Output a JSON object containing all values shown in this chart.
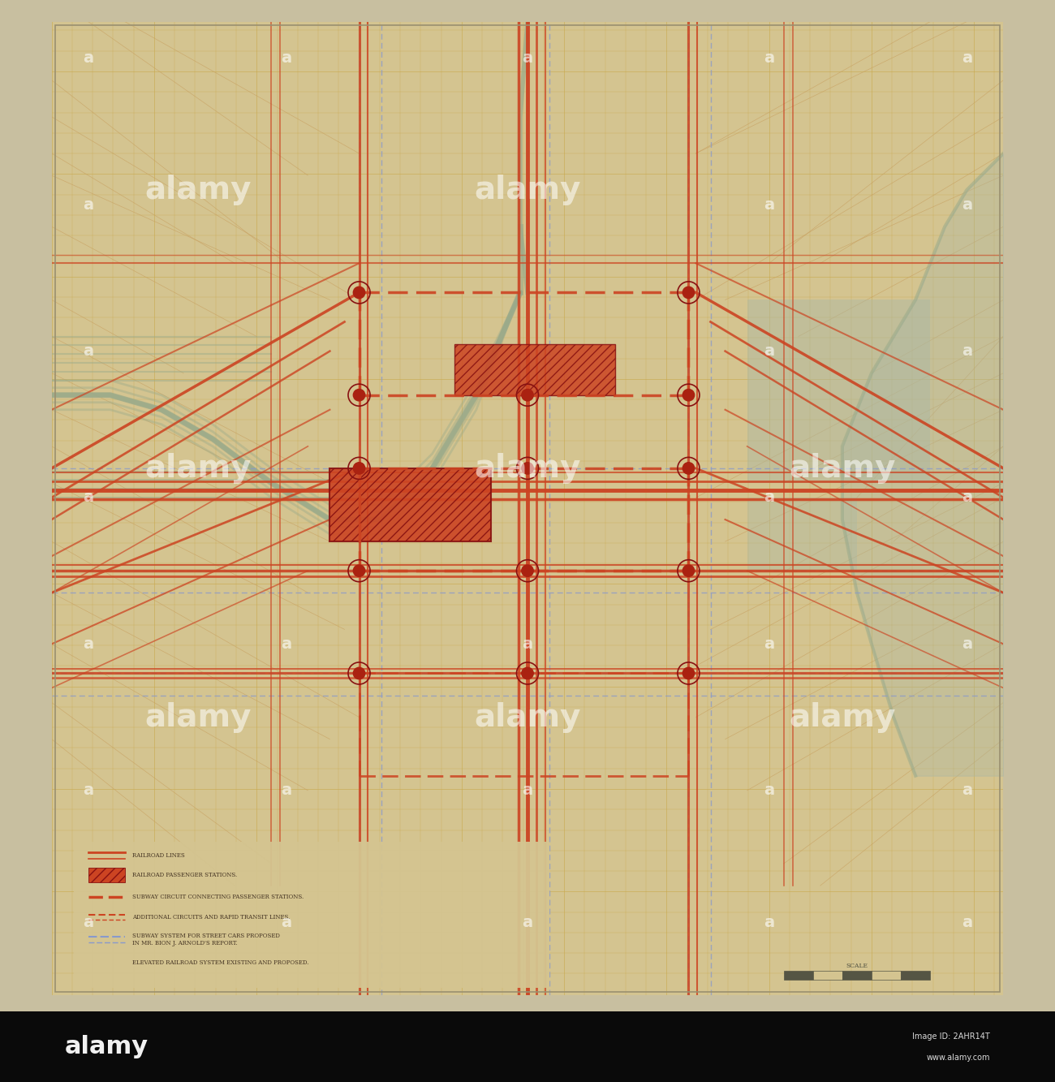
{
  "bg_outer": "#c8bfa0",
  "bg_paper": "#d4c490",
  "bg_map": "#d0bc85",
  "grid_color_h": "#c8a84a",
  "grid_color_v": "#c8a84a",
  "diag_color": "#c8a060",
  "railroad_color": "#cc4422",
  "railroad_color2": "#dd5533",
  "elevated_color": "#9aaa8a",
  "river_color": "#9aaa8a",
  "blue_color": "#8899cc",
  "station_hatch_color": "#cc4422",
  "station_hatch_bg": "#dd6644",
  "node_color": "#aa2211",
  "border_color": "#9a9070",
  "watermark_color": "#ffffff",
  "legend_text_color": "#443322",
  "bottom_bar_color": "#0a0a0a",
  "figsize": [
    13.0,
    13.33
  ],
  "dpi": 100,
  "legend_items": [
    "RAILROAD LINES",
    "RAILROAD PASSENGER STATIONS.",
    "SUBWAY CIRCUIT CONNECTING PASSENGER STATIONS.",
    "ADDITIONAL CIRCUITS AND RAPID TRANSIT LINES.",
    "SUBWAY SYSTEM FOR STREET CARS PROPOSED\nIN MR. BION J. ARNOLD'S REPORT.",
    "ELEVATED RAILROAD SYSTEM EXISTING AND PROPOSED."
  ]
}
